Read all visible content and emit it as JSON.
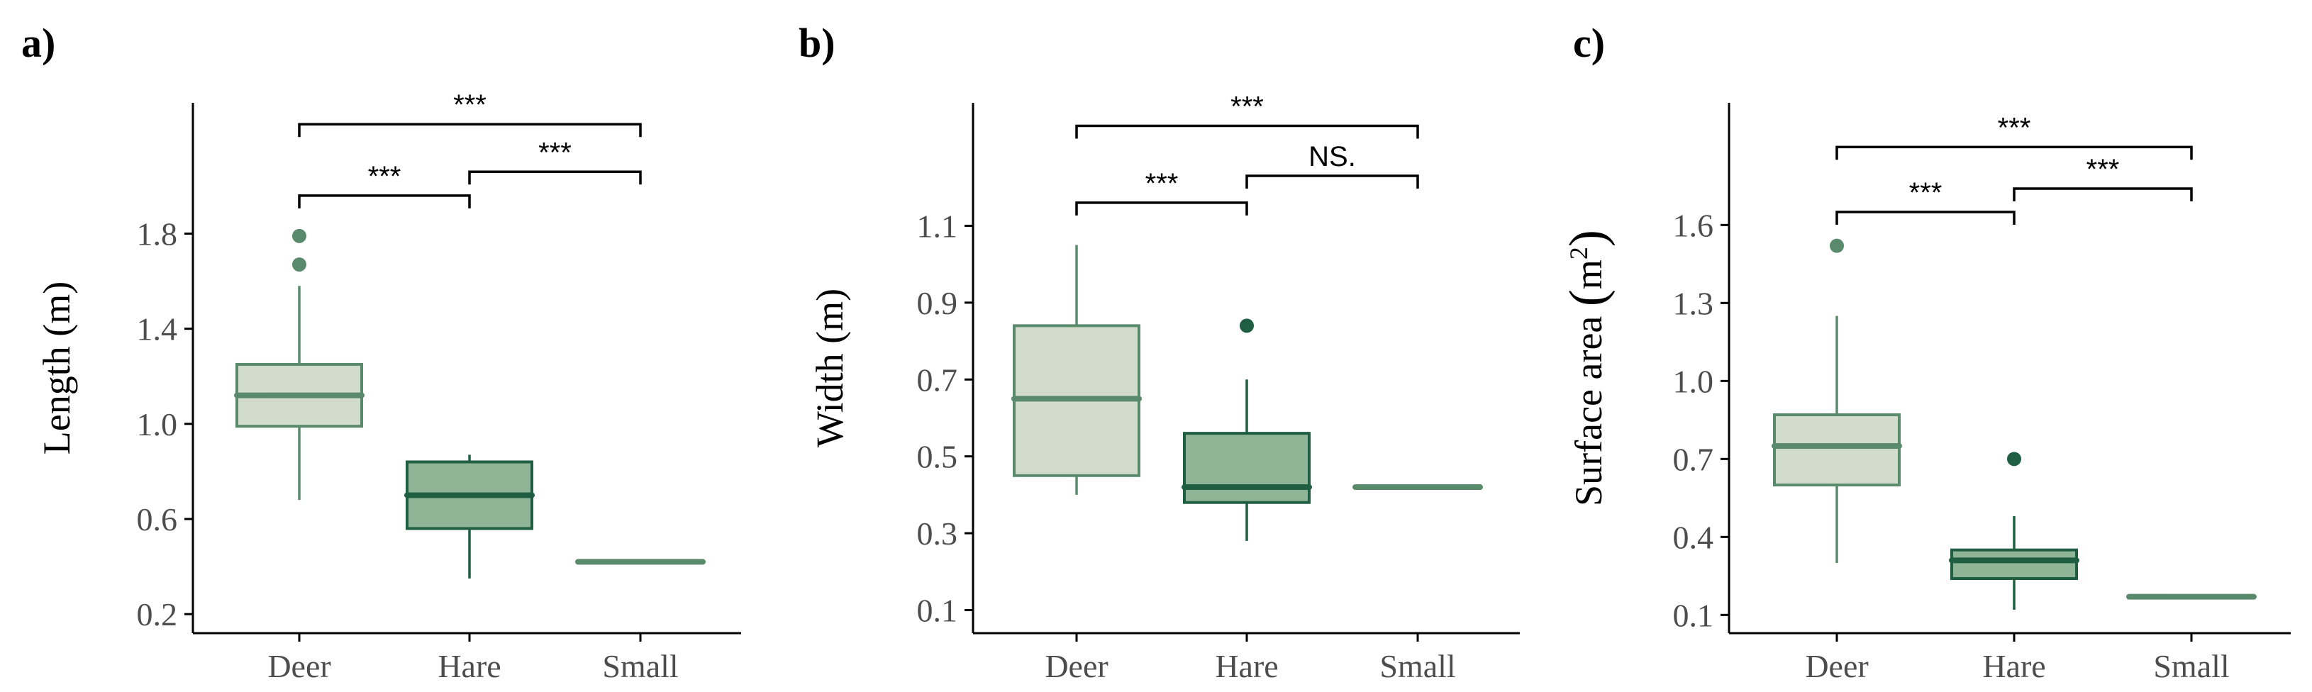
{
  "colors": {
    "deer_fill": "#d1dccb",
    "deer_line": "#5a8a6c",
    "hare_fill": "#8fb596",
    "hare_line": "#1f5e43",
    "small_line": "#5a8a6c",
    "axis": "#000000",
    "tick_text": "#4d4d4d"
  },
  "chart_data": [
    {
      "panel": "a)",
      "type": "box",
      "ylabel": "Length (m)",
      "ylim": [
        0.12,
        2.35
      ],
      "yticks": [
        {
          "value": 0.2,
          "label": "0.2"
        },
        {
          "value": 0.6,
          "label": "0.6"
        },
        {
          "value": 1.0,
          "label": "1.0"
        },
        {
          "value": 1.4,
          "label": "1.4"
        },
        {
          "value": 1.8,
          "label": "1.8"
        }
      ],
      "categories": [
        "Deer",
        "Hare",
        "Small"
      ],
      "boxes": [
        {
          "name": "Deer",
          "q1": 0.99,
          "median": 1.12,
          "q3": 1.25,
          "whisker_low": 0.68,
          "whisker_high": 1.58,
          "outliers": [
            1.67,
            1.79
          ]
        },
        {
          "name": "Hare",
          "q1": 0.56,
          "median": 0.7,
          "q3": 0.84,
          "whisker_low": 0.35,
          "whisker_high": 0.87,
          "outliers": []
        },
        {
          "name": "Small",
          "q1": 0.42,
          "median": 0.42,
          "q3": 0.42,
          "whisker_low": 0.42,
          "whisker_high": 0.42,
          "outliers": []
        }
      ],
      "comparisons": [
        {
          "from": 0,
          "to": 1,
          "level": 1.96,
          "label": "***"
        },
        {
          "from": 1,
          "to": 2,
          "level": 2.06,
          "label": "***"
        },
        {
          "from": 0,
          "to": 2,
          "level": 2.26,
          "label": "***"
        }
      ]
    },
    {
      "panel": "b)",
      "type": "box",
      "ylabel": "Width (m)",
      "ylim": [
        0.04,
        1.42
      ],
      "yticks": [
        {
          "value": 0.1,
          "label": "0.1"
        },
        {
          "value": 0.3,
          "label": "0.3"
        },
        {
          "value": 0.5,
          "label": "0.5"
        },
        {
          "value": 0.7,
          "label": "0.7"
        },
        {
          "value": 0.9,
          "label": "0.9"
        },
        {
          "value": 1.1,
          "label": "1.1"
        }
      ],
      "categories": [
        "Deer",
        "Hare",
        "Small"
      ],
      "boxes": [
        {
          "name": "Deer",
          "q1": 0.45,
          "median": 0.65,
          "q3": 0.84,
          "whisker_low": 0.4,
          "whisker_high": 1.05,
          "outliers": []
        },
        {
          "name": "Hare",
          "q1": 0.38,
          "median": 0.42,
          "q3": 0.56,
          "whisker_low": 0.28,
          "whisker_high": 0.7,
          "outliers": [
            0.84
          ]
        },
        {
          "name": "Small",
          "q1": 0.42,
          "median": 0.42,
          "q3": 0.42,
          "whisker_low": 0.42,
          "whisker_high": 0.42,
          "outliers": []
        }
      ],
      "comparisons": [
        {
          "from": 0,
          "to": 1,
          "level": 1.16,
          "label": "***"
        },
        {
          "from": 1,
          "to": 2,
          "level": 1.23,
          "label": "NS."
        },
        {
          "from": 0,
          "to": 2,
          "level": 1.36,
          "label": "***"
        }
      ]
    },
    {
      "panel": "c)",
      "type": "box",
      "ylabel": "Surface area",
      "ylabel_unit": "m",
      "ylabel_sup": "2",
      "ylim": [
        0.03,
        2.07
      ],
      "yticks": [
        {
          "value": 0.1,
          "label": "0.1"
        },
        {
          "value": 0.4,
          "label": "0.4"
        },
        {
          "value": 0.7,
          "label": "0.7"
        },
        {
          "value": 1.0,
          "label": "1.0"
        },
        {
          "value": 1.3,
          "label": "1.3"
        },
        {
          "value": 1.6,
          "label": "1.6"
        }
      ],
      "categories": [
        "Deer",
        "Hare",
        "Small"
      ],
      "boxes": [
        {
          "name": "Deer",
          "q1": 0.6,
          "median": 0.75,
          "q3": 0.87,
          "whisker_low": 0.3,
          "whisker_high": 1.25,
          "outliers": [
            1.52
          ]
        },
        {
          "name": "Hare",
          "q1": 0.24,
          "median": 0.31,
          "q3": 0.35,
          "whisker_low": 0.12,
          "whisker_high": 0.48,
          "outliers": [
            0.7
          ]
        },
        {
          "name": "Small",
          "q1": 0.17,
          "median": 0.17,
          "q3": 0.17,
          "whisker_low": 0.17,
          "whisker_high": 0.17,
          "outliers": []
        }
      ],
      "comparisons": [
        {
          "from": 0,
          "to": 1,
          "level": 1.65,
          "label": "***"
        },
        {
          "from": 1,
          "to": 2,
          "level": 1.74,
          "label": "***"
        },
        {
          "from": 0,
          "to": 2,
          "level": 1.9,
          "label": "***"
        }
      ]
    }
  ]
}
